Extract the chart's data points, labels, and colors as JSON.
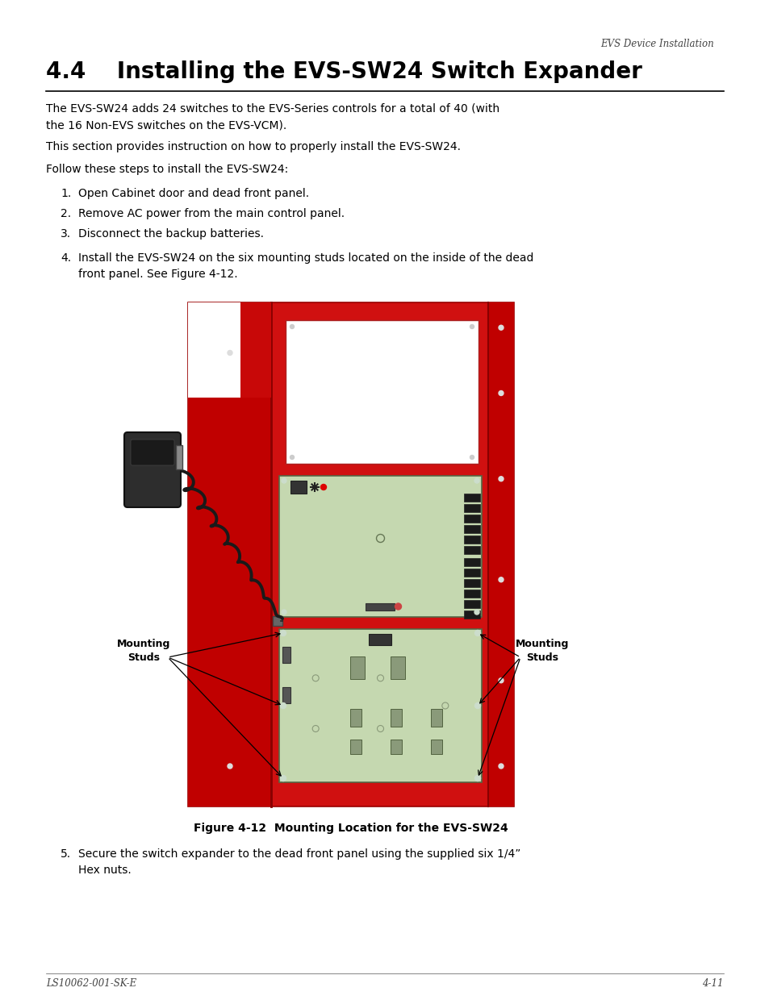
{
  "page_header": "EVS Device Installation",
  "section_title": "4.4    Installing the EVS-SW24 Switch Expander",
  "body_text_1": "The EVS-SW24 adds 24 switches to the EVS-Series controls for a total of 40 (with\nthe 16 Non-EVS switches on the EVS-VCM).",
  "body_text_2": "This section provides instruction on how to properly install the EVS-SW24.",
  "body_text_3": "Follow these steps to install the EVS-SW24:",
  "steps": [
    "Open Cabinet door and dead front panel.",
    "Remove AC power from the main control panel.",
    "Disconnect the backup batteries.",
    "Install the EVS-SW24 on the six mounting studs located on the inside of the dead\nfront panel. See Figure 4-12."
  ],
  "figure_caption": "Figure 4-12  Mounting Location for the EVS-SW24",
  "step5": "Secure the switch expander to the dead front panel using the supplied six 1/4”\nHex nuts.",
  "footer_left": "LS10062-001-SK-E",
  "footer_right": "4-11",
  "bg_color": "#ffffff",
  "text_color": "#000000",
  "red_panel": "#d01010",
  "red_dark": "#aa0000",
  "red_strip": "#bb0808",
  "green_board": "#c5d8b0",
  "connector_color": "#222222"
}
